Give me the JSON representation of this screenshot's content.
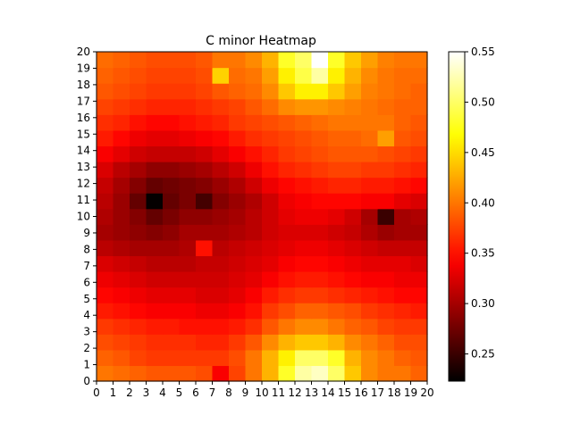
{
  "chart_data": {
    "type": "heatmap",
    "title": "C minor Heatmap",
    "xlabel": "",
    "ylabel": "",
    "colormap": "hot",
    "x_ticks": [
      0,
      1,
      2,
      3,
      4,
      5,
      6,
      7,
      8,
      9,
      10,
      11,
      12,
      13,
      14,
      15,
      16,
      17,
      18,
      19,
      20
    ],
    "y_ticks": [
      0,
      1,
      2,
      3,
      4,
      5,
      6,
      7,
      8,
      9,
      10,
      11,
      12,
      13,
      14,
      15,
      16,
      17,
      18,
      19,
      20
    ],
    "xlim": [
      0,
      20
    ],
    "ylim": [
      0,
      20
    ],
    "colorbar": {
      "vmin": 0.223,
      "vmax": 0.55,
      "ticks": [
        0.25,
        0.3,
        0.35,
        0.4,
        0.45,
        0.5,
        0.55
      ]
    },
    "grid_rows_from_bottom": [
      [
        0.4,
        0.395,
        0.39,
        0.385,
        0.385,
        0.385,
        0.38,
        0.34,
        0.375,
        0.4,
        0.43,
        0.48,
        0.52,
        0.53,
        0.5,
        0.44,
        0.41,
        0.4,
        0.4,
        0.39
      ],
      [
        0.39,
        0.385,
        0.375,
        0.37,
        0.37,
        0.37,
        0.37,
        0.37,
        0.38,
        0.4,
        0.43,
        0.46,
        0.5,
        0.5,
        0.48,
        0.43,
        0.41,
        0.4,
        0.39,
        0.385
      ],
      [
        0.38,
        0.375,
        0.37,
        0.365,
        0.365,
        0.365,
        0.36,
        0.36,
        0.37,
        0.385,
        0.41,
        0.43,
        0.44,
        0.44,
        0.43,
        0.41,
        0.4,
        0.39,
        0.38,
        0.38
      ],
      [
        0.37,
        0.365,
        0.36,
        0.355,
        0.355,
        0.35,
        0.35,
        0.35,
        0.355,
        0.365,
        0.385,
        0.4,
        0.41,
        0.41,
        0.4,
        0.39,
        0.385,
        0.375,
        0.37,
        0.37
      ],
      [
        0.355,
        0.35,
        0.345,
        0.34,
        0.34,
        0.34,
        0.335,
        0.335,
        0.34,
        0.35,
        0.37,
        0.38,
        0.39,
        0.39,
        0.385,
        0.38,
        0.37,
        0.365,
        0.36,
        0.355
      ],
      [
        0.345,
        0.34,
        0.335,
        0.33,
        0.33,
        0.33,
        0.325,
        0.325,
        0.33,
        0.34,
        0.355,
        0.365,
        0.37,
        0.37,
        0.365,
        0.36,
        0.355,
        0.35,
        0.345,
        0.345
      ],
      [
        0.335,
        0.33,
        0.325,
        0.32,
        0.32,
        0.32,
        0.32,
        0.32,
        0.325,
        0.33,
        0.34,
        0.35,
        0.355,
        0.355,
        0.35,
        0.345,
        0.34,
        0.34,
        0.335,
        0.335
      ],
      [
        0.325,
        0.32,
        0.315,
        0.31,
        0.31,
        0.31,
        0.315,
        0.315,
        0.32,
        0.325,
        0.33,
        0.34,
        0.345,
        0.345,
        0.34,
        0.335,
        0.33,
        0.33,
        0.33,
        0.325
      ],
      [
        0.31,
        0.305,
        0.3,
        0.3,
        0.3,
        0.305,
        0.35,
        0.31,
        0.315,
        0.32,
        0.325,
        0.33,
        0.335,
        0.335,
        0.33,
        0.325,
        0.32,
        0.315,
        0.315,
        0.315
      ],
      [
        0.3,
        0.295,
        0.29,
        0.285,
        0.29,
        0.3,
        0.3,
        0.3,
        0.305,
        0.31,
        0.32,
        0.325,
        0.325,
        0.325,
        0.32,
        0.315,
        0.305,
        0.295,
        0.3,
        0.3
      ],
      [
        0.305,
        0.295,
        0.285,
        0.27,
        0.28,
        0.29,
        0.29,
        0.295,
        0.3,
        0.31,
        0.32,
        0.33,
        0.335,
        0.335,
        0.33,
        0.32,
        0.3,
        0.25,
        0.3,
        0.305
      ],
      [
        0.31,
        0.295,
        0.27,
        0.225,
        0.27,
        0.28,
        0.255,
        0.285,
        0.295,
        0.305,
        0.32,
        0.335,
        0.34,
        0.345,
        0.345,
        0.345,
        0.34,
        0.34,
        0.33,
        0.325
      ],
      [
        0.315,
        0.3,
        0.285,
        0.27,
        0.275,
        0.28,
        0.285,
        0.295,
        0.305,
        0.32,
        0.335,
        0.345,
        0.35,
        0.355,
        0.36,
        0.36,
        0.355,
        0.355,
        0.35,
        0.345
      ],
      [
        0.325,
        0.31,
        0.3,
        0.29,
        0.29,
        0.295,
        0.3,
        0.31,
        0.32,
        0.335,
        0.35,
        0.36,
        0.365,
        0.37,
        0.375,
        0.375,
        0.37,
        0.37,
        0.365,
        0.36
      ],
      [
        0.34,
        0.33,
        0.32,
        0.315,
        0.315,
        0.315,
        0.32,
        0.33,
        0.34,
        0.35,
        0.36,
        0.37,
        0.375,
        0.38,
        0.385,
        0.385,
        0.385,
        0.38,
        0.375,
        0.37
      ],
      [
        0.355,
        0.345,
        0.335,
        0.33,
        0.33,
        0.335,
        0.34,
        0.345,
        0.355,
        0.365,
        0.37,
        0.375,
        0.38,
        0.385,
        0.39,
        0.39,
        0.395,
        0.42,
        0.385,
        0.38
      ],
      [
        0.365,
        0.36,
        0.35,
        0.345,
        0.345,
        0.35,
        0.355,
        0.36,
        0.37,
        0.375,
        0.38,
        0.385,
        0.39,
        0.395,
        0.4,
        0.4,
        0.4,
        0.4,
        0.39,
        0.385
      ],
      [
        0.375,
        0.37,
        0.365,
        0.36,
        0.36,
        0.36,
        0.365,
        0.37,
        0.375,
        0.385,
        0.395,
        0.41,
        0.415,
        0.415,
        0.41,
        0.405,
        0.4,
        0.395,
        0.39,
        0.39
      ],
      [
        0.385,
        0.38,
        0.375,
        0.37,
        0.37,
        0.37,
        0.375,
        0.385,
        0.39,
        0.395,
        0.41,
        0.44,
        0.46,
        0.46,
        0.44,
        0.42,
        0.405,
        0.4,
        0.395,
        0.39
      ],
      [
        0.39,
        0.385,
        0.38,
        0.375,
        0.375,
        0.375,
        0.38,
        0.445,
        0.395,
        0.4,
        0.42,
        0.46,
        0.49,
        0.52,
        0.46,
        0.43,
        0.41,
        0.4,
        0.395,
        0.395
      ],
      [
        0.395,
        0.39,
        0.385,
        0.38,
        0.38,
        0.38,
        0.385,
        0.4,
        0.4,
        0.41,
        0.43,
        0.48,
        0.5,
        0.55,
        0.48,
        0.44,
        0.42,
        0.405,
        0.4,
        0.4
      ]
    ]
  }
}
